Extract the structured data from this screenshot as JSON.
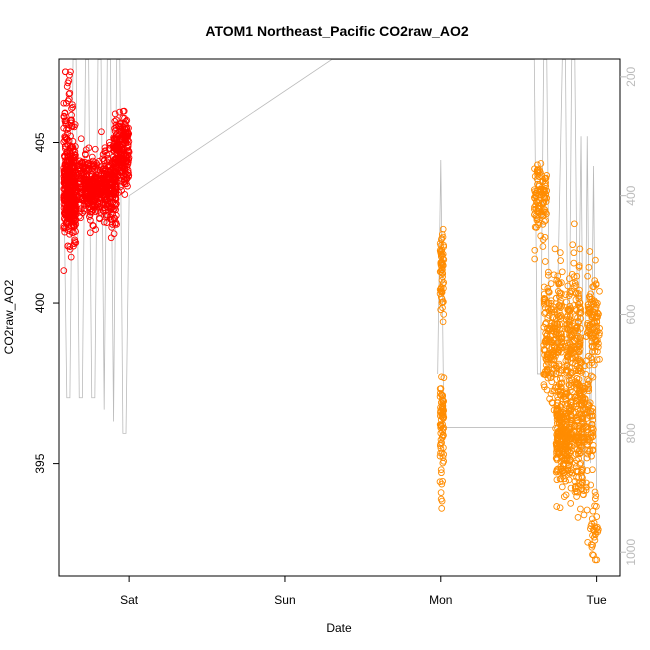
{
  "chart_data": {
    "type": "scatter",
    "title": "ATOM1 Northeast_Pacific CO2raw_AO2",
    "xlabel": "Date",
    "ylabel": "CO2raw_AO2",
    "x_ticks": [
      {
        "label": "Sat",
        "value": 1.0
      },
      {
        "label": "Sun",
        "value": 2.0
      },
      {
        "label": "Mon",
        "value": 3.0
      },
      {
        "label": "Tue",
        "value": 4.0
      }
    ],
    "xlim": [
      0.55,
      4.15
    ],
    "ylim": [
      391.5,
      407.6
    ],
    "y_ticks": [
      395,
      400,
      405
    ],
    "y2lim": [
      1040,
      170
    ],
    "y2_ticks": [
      200,
      400,
      600,
      800,
      1000
    ],
    "grid": false,
    "colors": {
      "series1": "#ff0000",
      "series2": "#ff8c00",
      "pressure": "#bbbbbb",
      "axis": "#000000",
      "axis2": "#bbbbbb"
    },
    "series": [
      {
        "color": "#ff0000",
        "clusters": [
          {
            "x": [
              0.58,
              0.66
            ],
            "y_center": 403.5,
            "y_spread": 1.3,
            "count": 400
          },
          {
            "x": [
              0.58,
              0.64
            ],
            "y_center": 405.5,
            "y_spread": 1.4,
            "count": 50
          },
          {
            "x": [
              0.68,
              0.8
            ],
            "y_center": 403.6,
            "y_spread": 0.9,
            "count": 260
          },
          {
            "x": [
              0.8,
              0.92
            ],
            "y_center": 403.6,
            "y_spread": 1.0,
            "count": 260
          },
          {
            "x": [
              0.9,
              1.0
            ],
            "y_center": 404.6,
            "y_spread": 1.1,
            "count": 240
          }
        ]
      },
      {
        "color": "#ff8c00",
        "clusters": [
          {
            "x": [
              2.995,
              3.02
            ],
            "y_center": 401.0,
            "y_spread": 1.1,
            "count": 60
          },
          {
            "x": [
              2.995,
              3.02
            ],
            "y_center": 396.5,
            "y_spread": 1.0,
            "count": 60
          },
          {
            "x": [
              2.995,
              3.02
            ],
            "y_center": 394.5,
            "y_spread": 1.6,
            "count": 18
          },
          {
            "x": [
              3.6,
              3.68
            ],
            "y_center": 403.2,
            "y_spread": 1.0,
            "count": 110
          },
          {
            "x": [
              3.66,
              3.78
            ],
            "y_center": 399.0,
            "y_spread": 1.8,
            "count": 230
          },
          {
            "x": [
              3.74,
              3.84
            ],
            "y_center": 395.8,
            "y_spread": 1.6,
            "count": 280
          },
          {
            "x": [
              3.8,
              3.9
            ],
            "y_center": 398.5,
            "y_spread": 2.3,
            "count": 200
          },
          {
            "x": [
              3.86,
              3.98
            ],
            "y_center": 396.2,
            "y_spread": 2.0,
            "count": 220
          },
          {
            "x": [
              3.94,
              4.02
            ],
            "y_center": 399.5,
            "y_spread": 1.4,
            "count": 110
          },
          {
            "x": [
              3.96,
              4.02
            ],
            "y_center": 393.0,
            "y_spread": 1.1,
            "count": 30
          }
        ]
      },
      {
        "type": "line",
        "color": "#bbbbbb",
        "x": [
          0.58,
          0.6,
          0.62,
          0.64,
          0.66,
          0.68,
          0.7,
          0.72,
          0.74,
          0.76,
          0.78,
          0.8,
          0.82,
          0.84,
          0.86,
          0.88,
          0.9,
          0.92,
          0.94,
          0.96,
          0.98,
          1.0,
          2.3,
          3.6,
          3.62,
          3.64,
          3.66,
          3.68,
          3.7,
          3.74,
          3.78,
          3.8,
          3.82,
          3.84,
          3.86,
          3.88,
          3.9,
          3.92,
          3.94,
          3.96,
          3.98,
          4.0
        ],
        "y2": [
          350,
          740,
          740,
          170,
          170,
          740,
          740,
          170,
          170,
          740,
          740,
          170,
          170,
          760,
          170,
          170,
          780,
          170,
          170,
          800,
          800,
          400,
          170,
          170,
          700,
          700,
          170,
          170,
          700,
          700,
          170,
          170,
          800,
          170,
          170,
          700,
          300,
          900,
          300,
          850,
          350,
          900
        ],
        "segment_gaps": [],
        "extra_segments": [
          {
            "x": [
              2.98,
              3.0,
              3.02
            ],
            "y2": [
              700,
              340,
              790
            ]
          },
          {
            "x": [
              3.02,
              3.74
            ],
            "y2": [
              790,
              790
            ]
          }
        ]
      }
    ]
  }
}
